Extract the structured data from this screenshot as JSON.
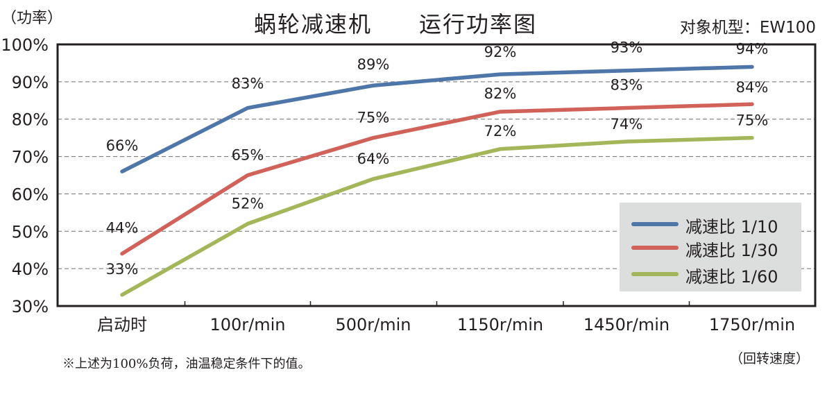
{
  "header": {
    "title": "蜗轮减速机　　运行功率图",
    "model": "对象机型：EW100",
    "y_unit": "（功率）",
    "x_unit": "（回转速度）"
  },
  "footnote": "※上述为100%负荷，油温稳定条件下的值。",
  "chart_data": {
    "type": "line",
    "title": "蜗轮减速机　　运行功率图",
    "xlabel": "（回转速度）",
    "ylabel": "（功率）",
    "categories": [
      "启动时",
      "100r/min",
      "500r/min",
      "1150r/min",
      "1450r/min",
      "1750r/min"
    ],
    "ylim": [
      30,
      100
    ],
    "yticks": [
      "30%",
      "40%",
      "50%",
      "60%",
      "70%",
      "80%",
      "90%",
      "100%"
    ],
    "ytick_values": [
      30,
      40,
      50,
      60,
      70,
      80,
      90,
      100
    ],
    "grid": "horizontal dashed",
    "legend_position": "bottom-right",
    "series": [
      {
        "name": "减速比 1/10",
        "color": "#4f76a8",
        "values": [
          66,
          83,
          89,
          92,
          93,
          94
        ],
        "labels": [
          "66%",
          "83%",
          "89%",
          "92%",
          "93%",
          "94%"
        ]
      },
      {
        "name": "减速比 1/30",
        "color": "#d0625a",
        "values": [
          44,
          65,
          75,
          82,
          83,
          84
        ],
        "labels": [
          "44%",
          "65%",
          "75%",
          "82%",
          "83%",
          "84%"
        ]
      },
      {
        "name": "减速比 1/60",
        "color": "#a3b75a",
        "values": [
          33,
          52,
          64,
          72,
          74,
          75
        ],
        "labels": [
          "33%",
          "52%",
          "64%",
          "72%",
          "74%",
          "75%"
        ]
      }
    ]
  }
}
